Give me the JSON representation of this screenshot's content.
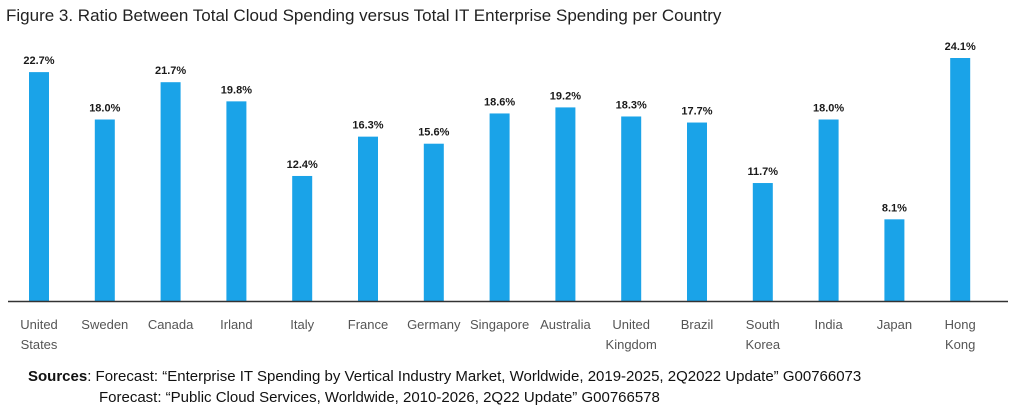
{
  "chart_data": {
    "type": "bar",
    "title": "Figure 3. Ratio Between Total Cloud Spending versus Total IT Enterprise Spending per Country",
    "categories": [
      [
        "United",
        "States"
      ],
      [
        "Sweden"
      ],
      [
        "Canada"
      ],
      [
        "Irland"
      ],
      [
        "Italy"
      ],
      [
        "France"
      ],
      [
        "Germany"
      ],
      [
        "Singapore"
      ],
      [
        "Australia"
      ],
      [
        "United",
        "Kingdom"
      ],
      [
        "Brazil"
      ],
      [
        "South",
        "Korea"
      ],
      [
        "India"
      ],
      [
        "Japan"
      ],
      [
        "Hong",
        "Kong"
      ]
    ],
    "values": [
      22.7,
      18.0,
      21.7,
      19.8,
      12.4,
      16.3,
      15.6,
      18.6,
      19.2,
      18.3,
      17.7,
      11.7,
      18.0,
      8.1,
      24.1
    ],
    "value_labels": [
      "22.7%",
      "18.0%",
      "21.7%",
      "19.8%",
      "12.4%",
      "16.3%",
      "15.6%",
      "18.6%",
      "19.2%",
      "18.3%",
      "17.7%",
      "11.7%",
      "18.0%",
      "8.1%",
      "24.1%"
    ],
    "ylim": [
      0,
      24.1
    ],
    "bar_color": "#1aa3e8",
    "axis_color": "#333333",
    "grid": false,
    "legend": "none"
  },
  "sources": {
    "label": "Sources",
    "line1": ": Forecast: “Enterprise IT Spending by Vertical Industry Market, Worldwide, 2019-2025, 2Q2022 Update” G00766073",
    "line2": "Forecast: “Public Cloud Services, Worldwide, 2010-2026, 2Q22 Update” G00766578"
  }
}
